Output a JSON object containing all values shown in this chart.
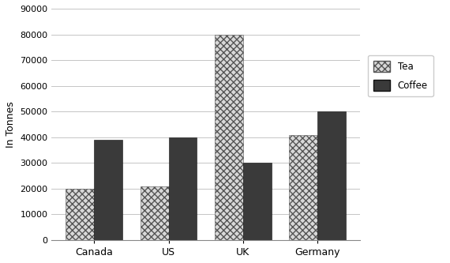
{
  "categories": [
    "Canada",
    "US",
    "UK",
    "Germany"
  ],
  "tea_values": [
    20000,
    21000,
    80000,
    41000
  ],
  "coffee_values": [
    39000,
    40000,
    30000,
    50000
  ],
  "ylabel": "In Tonnes",
  "ylim": [
    0,
    90000
  ],
  "yticks": [
    0,
    10000,
    20000,
    30000,
    40000,
    50000,
    60000,
    70000,
    80000,
    90000
  ],
  "legend_labels": [
    "Tea",
    "Coffee"
  ],
  "coffee_color": "#3a3a3a",
  "tea_facecolor": "#d8d8d8",
  "bar_width": 0.38,
  "background_color": "#ffffff",
  "grid_color": "#bbbbbb",
  "figsize": [
    5.7,
    3.33
  ],
  "dpi": 100
}
